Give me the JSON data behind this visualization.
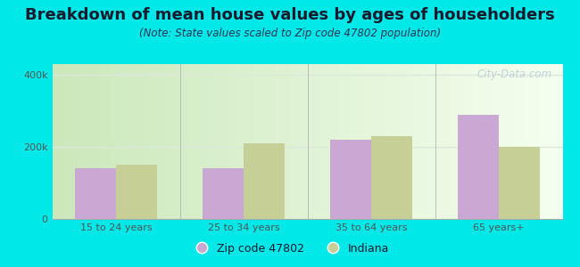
{
  "title": "Breakdown of mean house values by ages of householders",
  "subtitle": "(Note: State values scaled to Zip code 47802 population)",
  "categories": [
    "15 to 24 years",
    "25 to 34 years",
    "35 to 64 years",
    "65 years+"
  ],
  "zip_values": [
    140000,
    140000,
    220000,
    290000
  ],
  "indiana_values": [
    150000,
    210000,
    230000,
    200000
  ],
  "zip_color": "#c9a8d4",
  "indiana_color": "#c5cf96",
  "background_color": "#00e8e8",
  "plot_bg_left": "#d8eecc",
  "plot_bg_right": "#f8fff8",
  "ylim": [
    0,
    430000
  ],
  "yticks": [
    0,
    200000,
    400000
  ],
  "ytick_labels": [
    "0",
    "200k",
    "400k"
  ],
  "grid_color": "#dde8dd",
  "legend_zip_label": "Zip code 47802",
  "legend_indiana_label": "Indiana",
  "title_fontsize": 13,
  "subtitle_fontsize": 8.5,
  "bar_width": 0.32,
  "watermark": "City-Data.com",
  "watermark_color": "#b8ccd8",
  "title_color": "#1a1a2e",
  "subtitle_color": "#333355",
  "tick_color": "#555555"
}
